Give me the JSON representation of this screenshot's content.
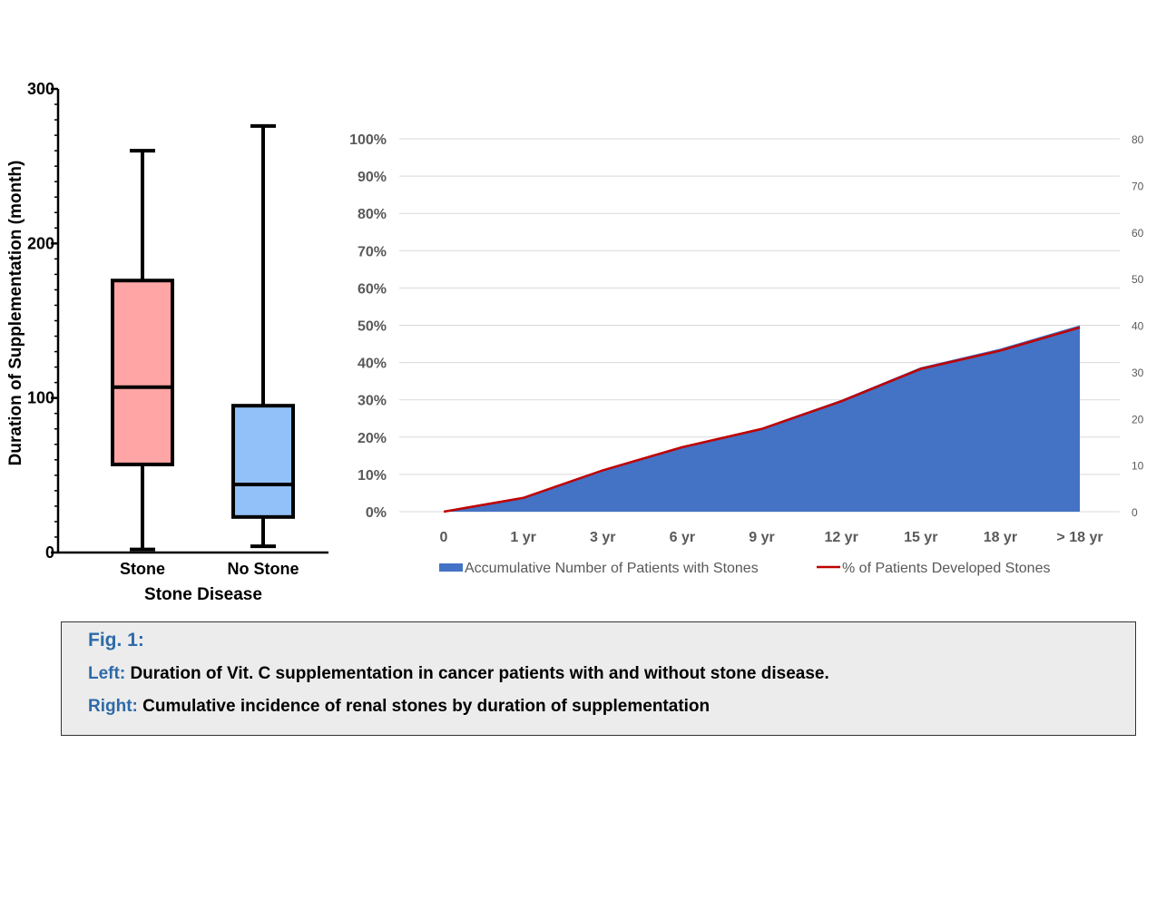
{
  "colors": {
    "stone_box": "#ffa5a5",
    "no_stone_box": "#92c0f9",
    "area_fill": "#4472c4",
    "line": "#c00000",
    "caption_key": "#2e6aa8",
    "caption_bg": "#ececec",
    "grid": "#d9d9d9",
    "tick_text": "#595959"
  },
  "chart_data": [
    {
      "type": "box",
      "title": "",
      "xlabel": "Stone Disease",
      "ylabel": "Duration of Supplementation (month)",
      "ylim": [
        0,
        300
      ],
      "yticks": [
        0,
        100,
        200,
        300
      ],
      "categories": [
        "Stone",
        "No Stone"
      ],
      "boxes": [
        {
          "name": "Stone",
          "min": 2,
          "q1": 57,
          "median": 107,
          "q3": 176,
          "max": 260
        },
        {
          "name": "No Stone",
          "min": 4,
          "q1": 23,
          "median": 44,
          "q3": 95,
          "max": 276
        }
      ]
    },
    {
      "type": "area",
      "title": "",
      "categories": [
        "0",
        "1 yr",
        "3 yr",
        "6 yr",
        "9 yr",
        "12 yr",
        "15 yr",
        "18 yr",
        "> 18 yr"
      ],
      "series": [
        {
          "name": "Accumulative Number of Patients with Stones",
          "kind": "area",
          "axis": "right",
          "values": [
            0,
            3,
            9,
            14,
            18,
            24,
            31,
            35,
            40
          ]
        },
        {
          "name": "% of Patients Developed Stones",
          "kind": "line",
          "axis": "left",
          "values": [
            0,
            3.7,
            11.1,
            17.3,
            22.2,
            29.6,
            38.3,
            43.2,
            49.4
          ]
        }
      ],
      "y_left": {
        "min": 0,
        "max": 100,
        "ticks": [
          "0%",
          "10%",
          "20%",
          "30%",
          "40%",
          "50%",
          "60%",
          "70%",
          "80%",
          "90%",
          "100%"
        ]
      },
      "y_right": {
        "min": 0,
        "max": 80,
        "ticks": [
          "0",
          "10",
          "20",
          "30",
          "40",
          "50",
          "60",
          "70",
          "80"
        ]
      },
      "legend": "bottom"
    }
  ],
  "caption": {
    "title": "Fig. 1:",
    "left_key": "Left:",
    "left_text": "Duration of Vit. C supplementation in cancer patients with and without stone disease.",
    "right_key": "Right:",
    "right_text": "Cumulative incidence of renal stones by duration of supplementation"
  }
}
